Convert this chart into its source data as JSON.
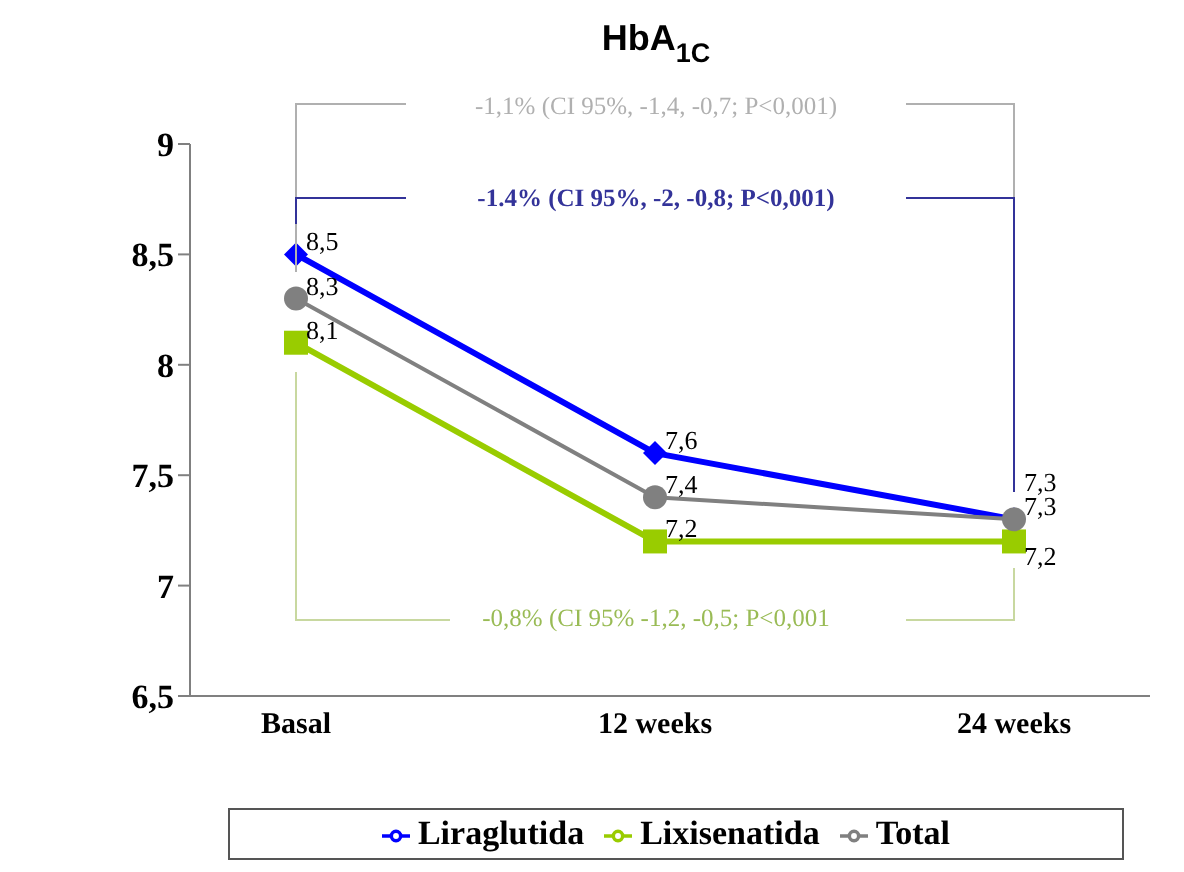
{
  "chart_data": {
    "type": "line",
    "title": "HbA$_{1C}$",
    "categories": [
      "Basal",
      "12 weeks",
      "24 weeks"
    ],
    "series": [
      {
        "name": "Liraglutida",
        "color": "#0000ff",
        "marker": "diamond",
        "values": [
          8.5,
          7.6,
          7.3
        ],
        "value_labels": [
          "8,5",
          "7,6",
          "7,3"
        ]
      },
      {
        "name": "Lixisenatida",
        "color": "#99cc00",
        "marker": "square",
        "values": [
          8.1,
          7.2,
          7.2
        ],
        "value_labels": [
          "8,1",
          "7,2",
          "7,2"
        ]
      },
      {
        "name": "Total",
        "color": "#808080",
        "marker": "circle",
        "values": [
          8.3,
          7.4,
          7.3
        ],
        "value_labels": [
          "8,3",
          "7,4",
          "7,3"
        ]
      }
    ],
    "ylim": [
      6.5,
      9
    ],
    "yticks": [
      {
        "value": 6.5,
        "label": "6,5"
      },
      7,
      {
        "value": 7.5,
        "label": "7,5"
      },
      8,
      {
        "value": 8.5,
        "label": "8,5"
      },
      9
    ],
    "legend": "bottom",
    "annotations": [
      "-1,1% (CI 95%, -1,4, -0,7; P<0,001)",
      "-1.4% (CI 95%, -2, -0,8; P<0,001)",
      "-0,8% (CI 95% -1,2, -0,5; P<0,001"
    ]
  }
}
